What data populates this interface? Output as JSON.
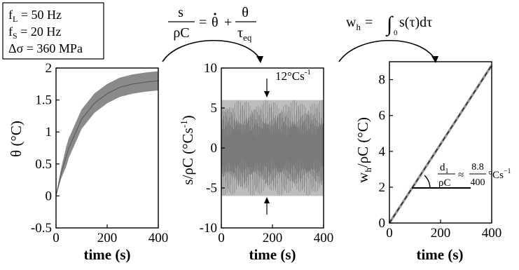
{
  "params": {
    "lines": [
      "f_L = 50 Hz",
      "f_S = 20 Hz",
      "Δσ = 360 MPa"
    ],
    "line1": {
      "sym": "f",
      "sub": "L",
      "rest": " = 50 Hz"
    },
    "line2": {
      "sym": "f",
      "sub": "S",
      "rest": " = 20 Hz"
    },
    "line3": {
      "text": "Δσ = 360 MPa"
    }
  },
  "equations": {
    "eq1": {
      "num_left": "s",
      "den_left": "ρC",
      "eq": "=",
      "theta_dot": "θ",
      "plus": "+",
      "num_right": "θ",
      "den_right": "τ",
      "den_right_sub": "eq"
    },
    "eq2": {
      "lhs": "w",
      "lhs_sub": "h",
      "eq": "=",
      "integral": "∫",
      "lower": "0",
      "body": "s(τ)dτ"
    }
  },
  "annotations": {
    "amp": "12°Cs",
    "amp_sup": "-1",
    "slope_num": "d",
    "slope_num_sub": "1",
    "slope_den": "ρC",
    "approx": "≈",
    "frac_num": "8.8",
    "frac_den": "400",
    "slope_unit": "°Cs",
    "slope_unit_sup": "−1"
  },
  "chart_data": [
    {
      "type": "line",
      "xlabel": "time (s)",
      "ylabel": "θ (°C)",
      "xlim": [
        0,
        400
      ],
      "ylim": [
        -0.5,
        2
      ],
      "xticks": [
        "0",
        "200",
        "400"
      ],
      "yticks": [
        "-0.5",
        "0",
        "0.5",
        "1",
        "1.5",
        "2"
      ],
      "series": [
        {
          "x": [
            0,
            20,
            50,
            100,
            150,
            200,
            250,
            300,
            350,
            400
          ],
          "y": [
            0,
            0.35,
            0.75,
            1.2,
            1.45,
            1.6,
            1.7,
            1.75,
            1.78,
            1.8
          ],
          "band_amplitude": 0.15
        }
      ]
    },
    {
      "type": "line",
      "xlabel": "time (s)",
      "ylabel": "s/ρC (°Cs",
      "ylabel_sup": "-1",
      "ylabel_end": ")",
      "xlim": [
        0,
        400
      ],
      "ylim": [
        -10,
        10
      ],
      "xticks": [
        "0",
        "200",
        "400"
      ],
      "yticks": [
        "-10",
        "-5",
        "0",
        "5",
        "10"
      ],
      "series": [
        {
          "oscillation_amplitude": 6,
          "mean": 0,
          "x_range": [
            0,
            400
          ]
        }
      ]
    },
    {
      "type": "line",
      "xlabel": "time (s)",
      "ylabel": "w",
      "ylabel_sub": "h",
      "ylabel_end": "/ρC (°C)",
      "xlim": [
        0,
        400
      ],
      "ylim": [
        0,
        9
      ],
      "xticks": [
        "0",
        "200",
        "400"
      ],
      "yticks": [
        "0",
        "2",
        "4",
        "6",
        "8"
      ],
      "series": [
        {
          "x": [
            0,
            400
          ],
          "y": [
            0,
            8.8
          ]
        }
      ]
    }
  ]
}
